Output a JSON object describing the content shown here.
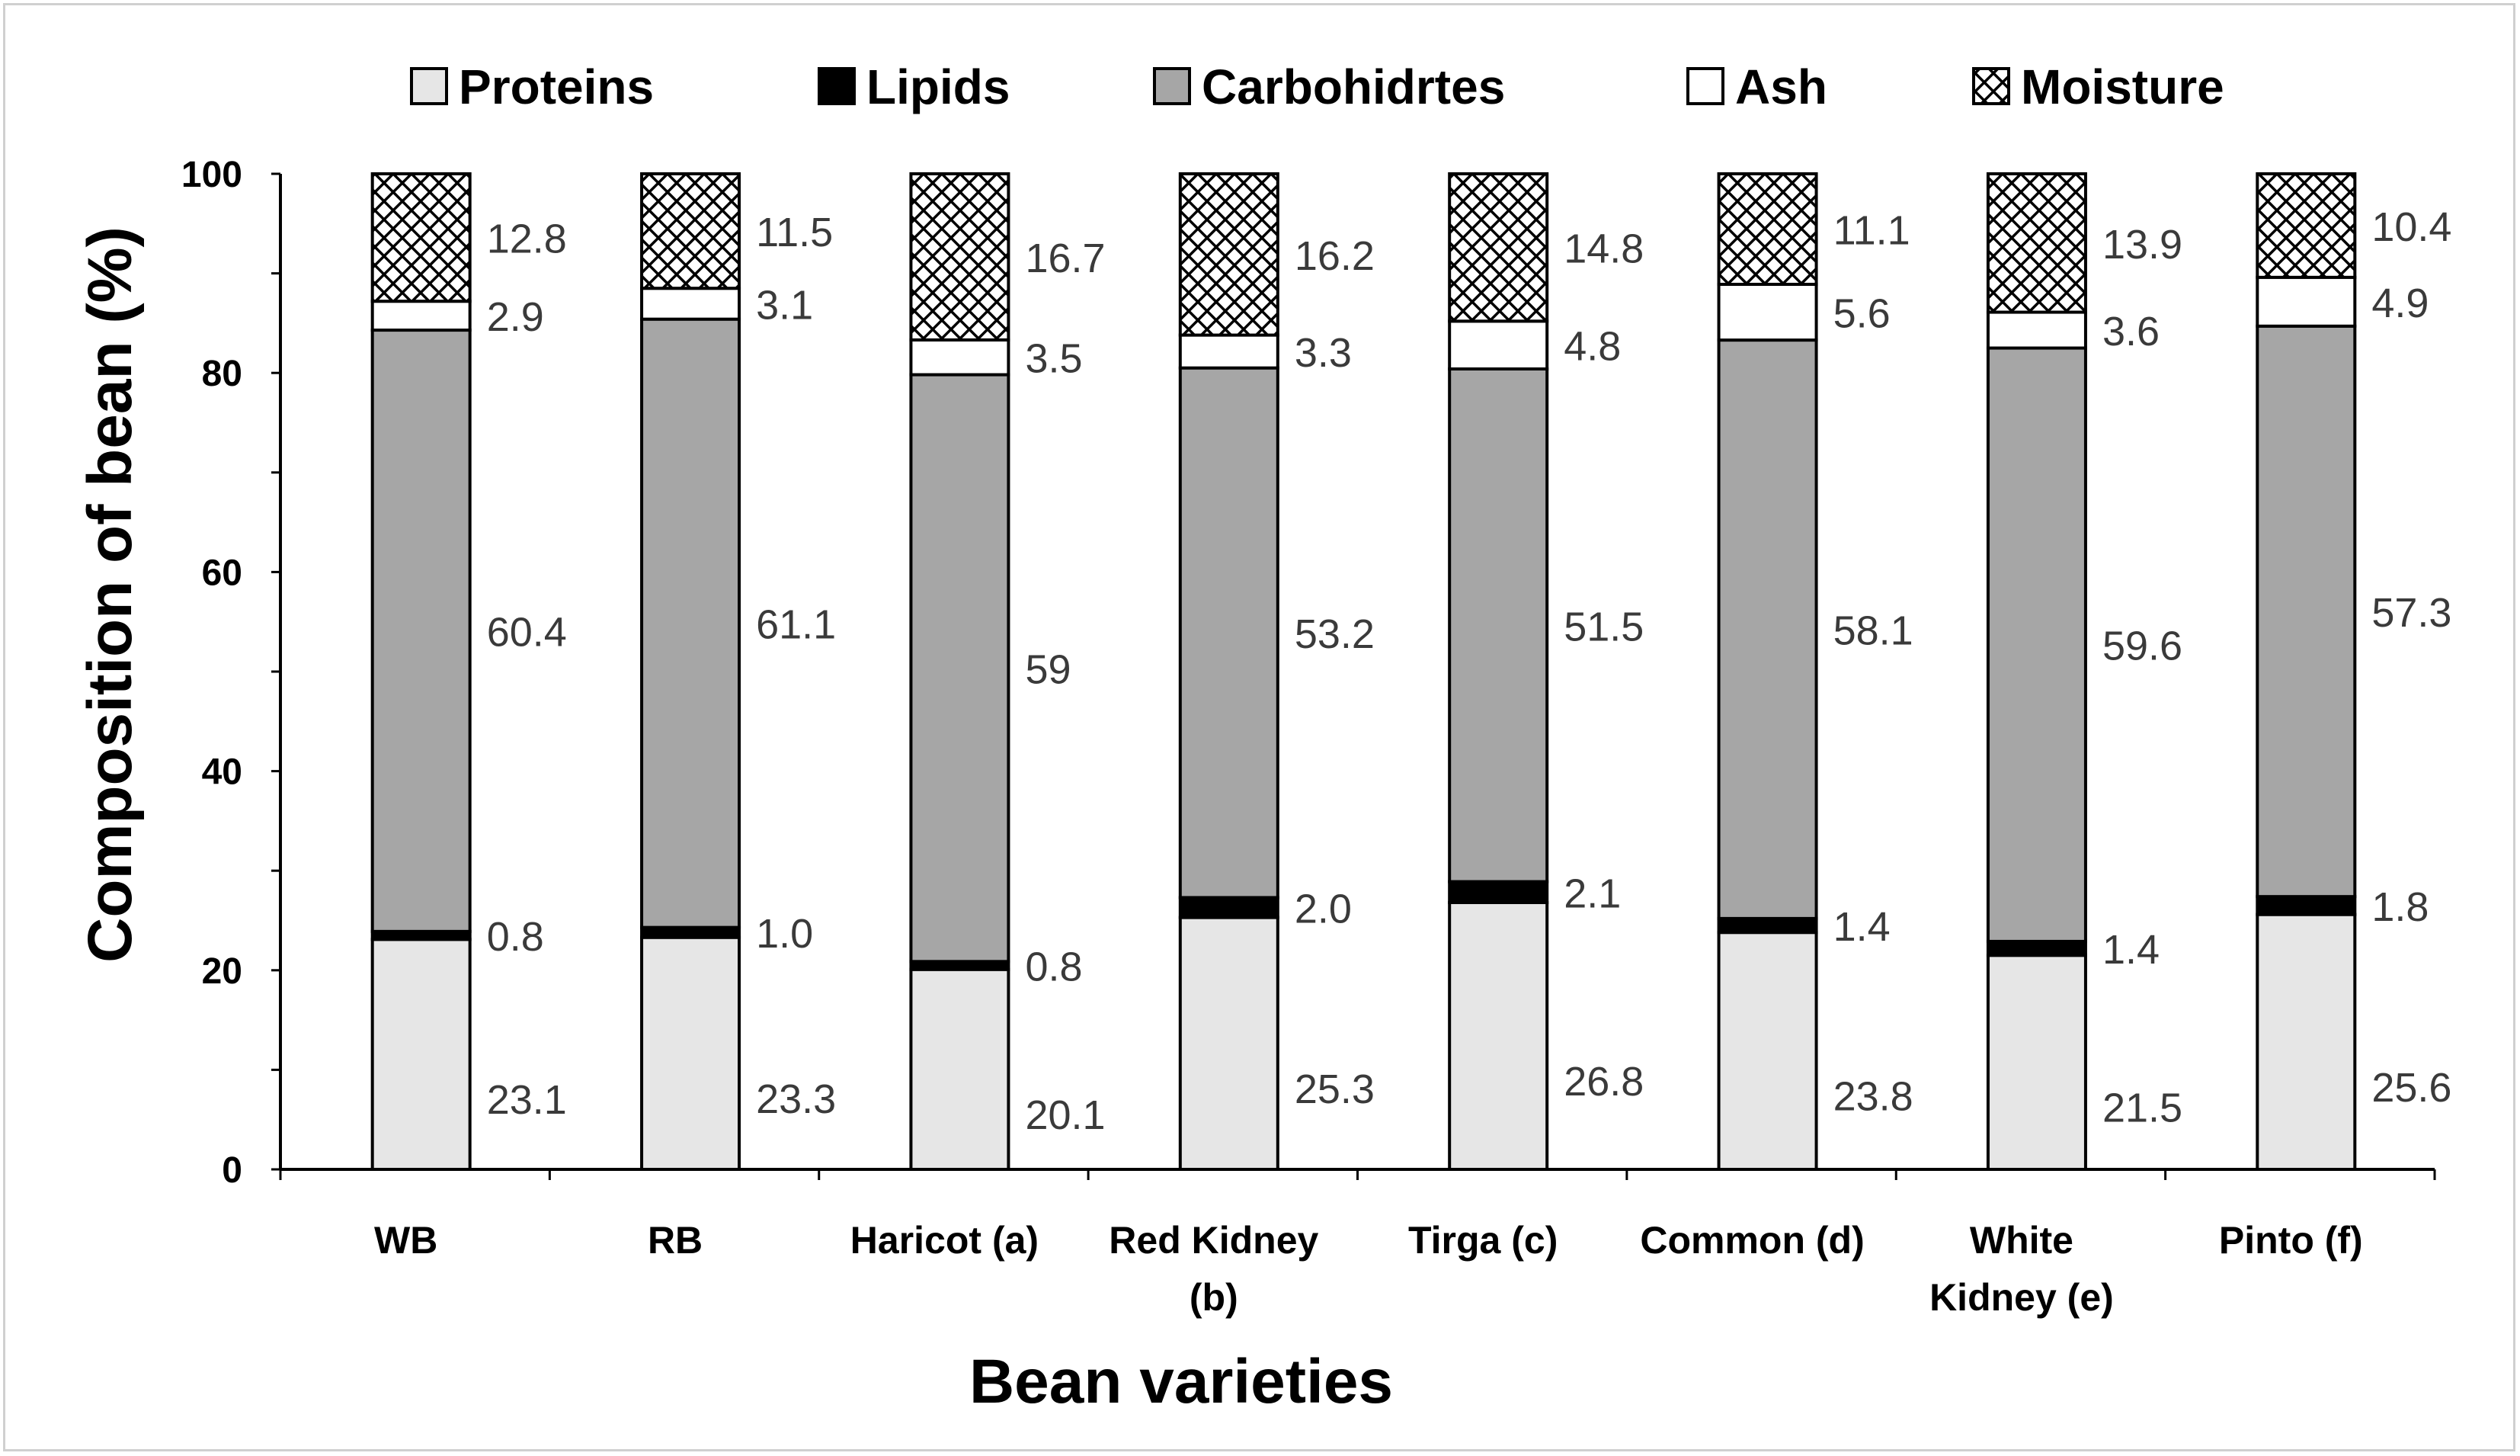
{
  "chart_data": {
    "type": "bar",
    "stacked": true,
    "title": "",
    "xlabel": "Bean varieties",
    "ylabel": "Composition of bean (%)",
    "ylim": [
      0,
      100
    ],
    "yticks": [
      0,
      20,
      40,
      60,
      80,
      100
    ],
    "legend_position": "top",
    "categories": [
      [
        "WB"
      ],
      [
        "RB"
      ],
      [
        "Haricot (a)"
      ],
      [
        "Red Kidney",
        "(b)"
      ],
      [
        "Tirga (c)"
      ],
      [
        "Common (d)"
      ],
      [
        "White",
        "Kidney (e)"
      ],
      [
        "Pinto (f)"
      ]
    ],
    "series": [
      {
        "name": "Proteins",
        "fill": "#e6e6e6",
        "values": [
          23.1,
          23.3,
          20.1,
          25.3,
          26.8,
          23.8,
          21.5,
          25.6
        ],
        "labels": [
          "23.1",
          "23.3",
          "20.1",
          "25.3",
          "26.8",
          "23.8",
          "21.5",
          "25.6"
        ]
      },
      {
        "name": "Lipids",
        "fill": "#000000",
        "values": [
          0.8,
          1.0,
          0.8,
          2.0,
          2.1,
          1.4,
          1.4,
          1.8
        ],
        "labels": [
          "0.8",
          "1.0",
          "0.8",
          "2.0",
          "2.1",
          "1.4",
          "1.4",
          "1.8"
        ]
      },
      {
        "name": "Carbohidrtes",
        "fill": "#a6a6a6",
        "values": [
          60.4,
          61.1,
          59,
          53.2,
          51.5,
          58.1,
          59.6,
          57.3
        ],
        "labels": [
          "60.4",
          "61.1",
          "59",
          "53.2",
          "51.5",
          "58.1",
          "59.6",
          "57.3"
        ]
      },
      {
        "name": "Ash",
        "fill": "#ffffff",
        "values": [
          2.9,
          3.1,
          3.5,
          3.3,
          4.8,
          5.6,
          3.6,
          4.9
        ],
        "labels": [
          "2.9",
          "3.1",
          "3.5",
          "3.3",
          "4.8",
          "5.6",
          "3.6",
          "4.9"
        ]
      },
      {
        "name": "Moisture",
        "fill": "pattern",
        "values": [
          12.8,
          11.5,
          16.7,
          16.2,
          14.8,
          11.1,
          13.9,
          10.4
        ],
        "labels": [
          "12.8",
          "11.5",
          "16.7",
          "16.2",
          "14.8",
          "11.1",
          "13.9",
          "10.4"
        ]
      }
    ]
  }
}
